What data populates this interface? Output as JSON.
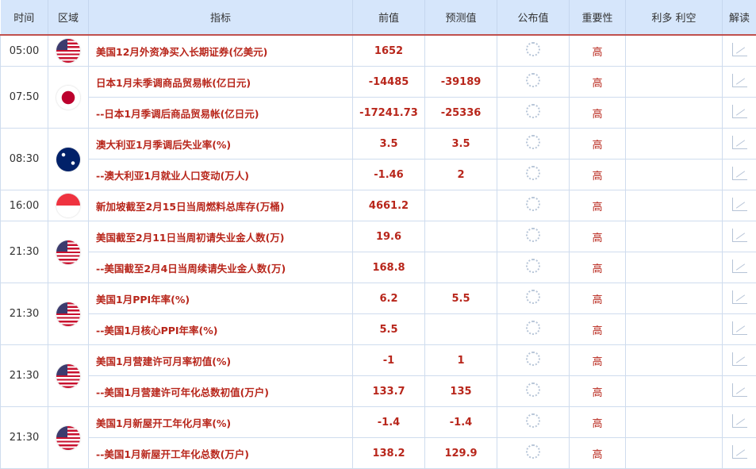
{
  "headers": [
    "时间",
    "区域",
    "指标",
    "前值",
    "预测值",
    "公布值",
    "重要性",
    "利多 利空",
    "解读"
  ],
  "groups": [
    {
      "time": "05:00",
      "flag": "us",
      "rows": [
        {
          "indicator": "美国12月外资净买入长期证券(亿美元)",
          "prev": "1652",
          "forecast": "",
          "importance": "高"
        }
      ]
    },
    {
      "time": "07:50",
      "flag": "jp",
      "rows": [
        {
          "indicator": "日本1月未季调商品贸易帐(亿日元)",
          "prev": "-14485",
          "forecast": "-39189",
          "importance": "高"
        },
        {
          "indicator": "--日本1月季调后商品贸易帐(亿日元)",
          "prev": "-17241.73",
          "forecast": "-25336",
          "importance": "高"
        }
      ]
    },
    {
      "time": "08:30",
      "flag": "au",
      "rows": [
        {
          "indicator": "澳大利亚1月季调后失业率(%)",
          "prev": "3.5",
          "forecast": "3.5",
          "importance": "高"
        },
        {
          "indicator": "--澳大利亚1月就业人口变动(万人)",
          "prev": "-1.46",
          "forecast": "2",
          "importance": "高"
        }
      ]
    },
    {
      "time": "16:00",
      "flag": "sg",
      "rows": [
        {
          "indicator": "新加坡截至2月15日当周燃料总库存(万桶)",
          "prev": "4661.2",
          "forecast": "",
          "importance": "高"
        }
      ]
    },
    {
      "time": "21:30",
      "flag": "us",
      "rows": [
        {
          "indicator": "美国截至2月11日当周初请失业金人数(万)",
          "prev": "19.6",
          "forecast": "",
          "importance": "高"
        },
        {
          "indicator": "--美国截至2月4日当周续请失业金人数(万)",
          "prev": "168.8",
          "forecast": "",
          "importance": "高"
        }
      ]
    },
    {
      "time": "21:30",
      "flag": "us",
      "rows": [
        {
          "indicator": "美国1月PPI年率(%)",
          "prev": "6.2",
          "forecast": "5.5",
          "importance": "高"
        },
        {
          "indicator": "--美国1月核心PPI年率(%)",
          "prev": "5.5",
          "forecast": "",
          "importance": "高"
        }
      ]
    },
    {
      "time": "21:30",
      "flag": "us",
      "rows": [
        {
          "indicator": "美国1月营建许可月率初值(%)",
          "prev": "-1",
          "forecast": "1",
          "importance": "高"
        },
        {
          "indicator": "--美国1月营建许可年化总数初值(万户)",
          "prev": "133.7",
          "forecast": "135",
          "importance": "高"
        }
      ]
    },
    {
      "time": "21:30",
      "flag": "us",
      "rows": [
        {
          "indicator": "美国1月新屋开工年化月率(%)",
          "prev": "-1.4",
          "forecast": "-1.4",
          "importance": "高"
        },
        {
          "indicator": "--美国1月新屋开工年化总数(万户)",
          "prev": "138.2",
          "forecast": "129.9",
          "importance": "高"
        }
      ]
    }
  ]
}
